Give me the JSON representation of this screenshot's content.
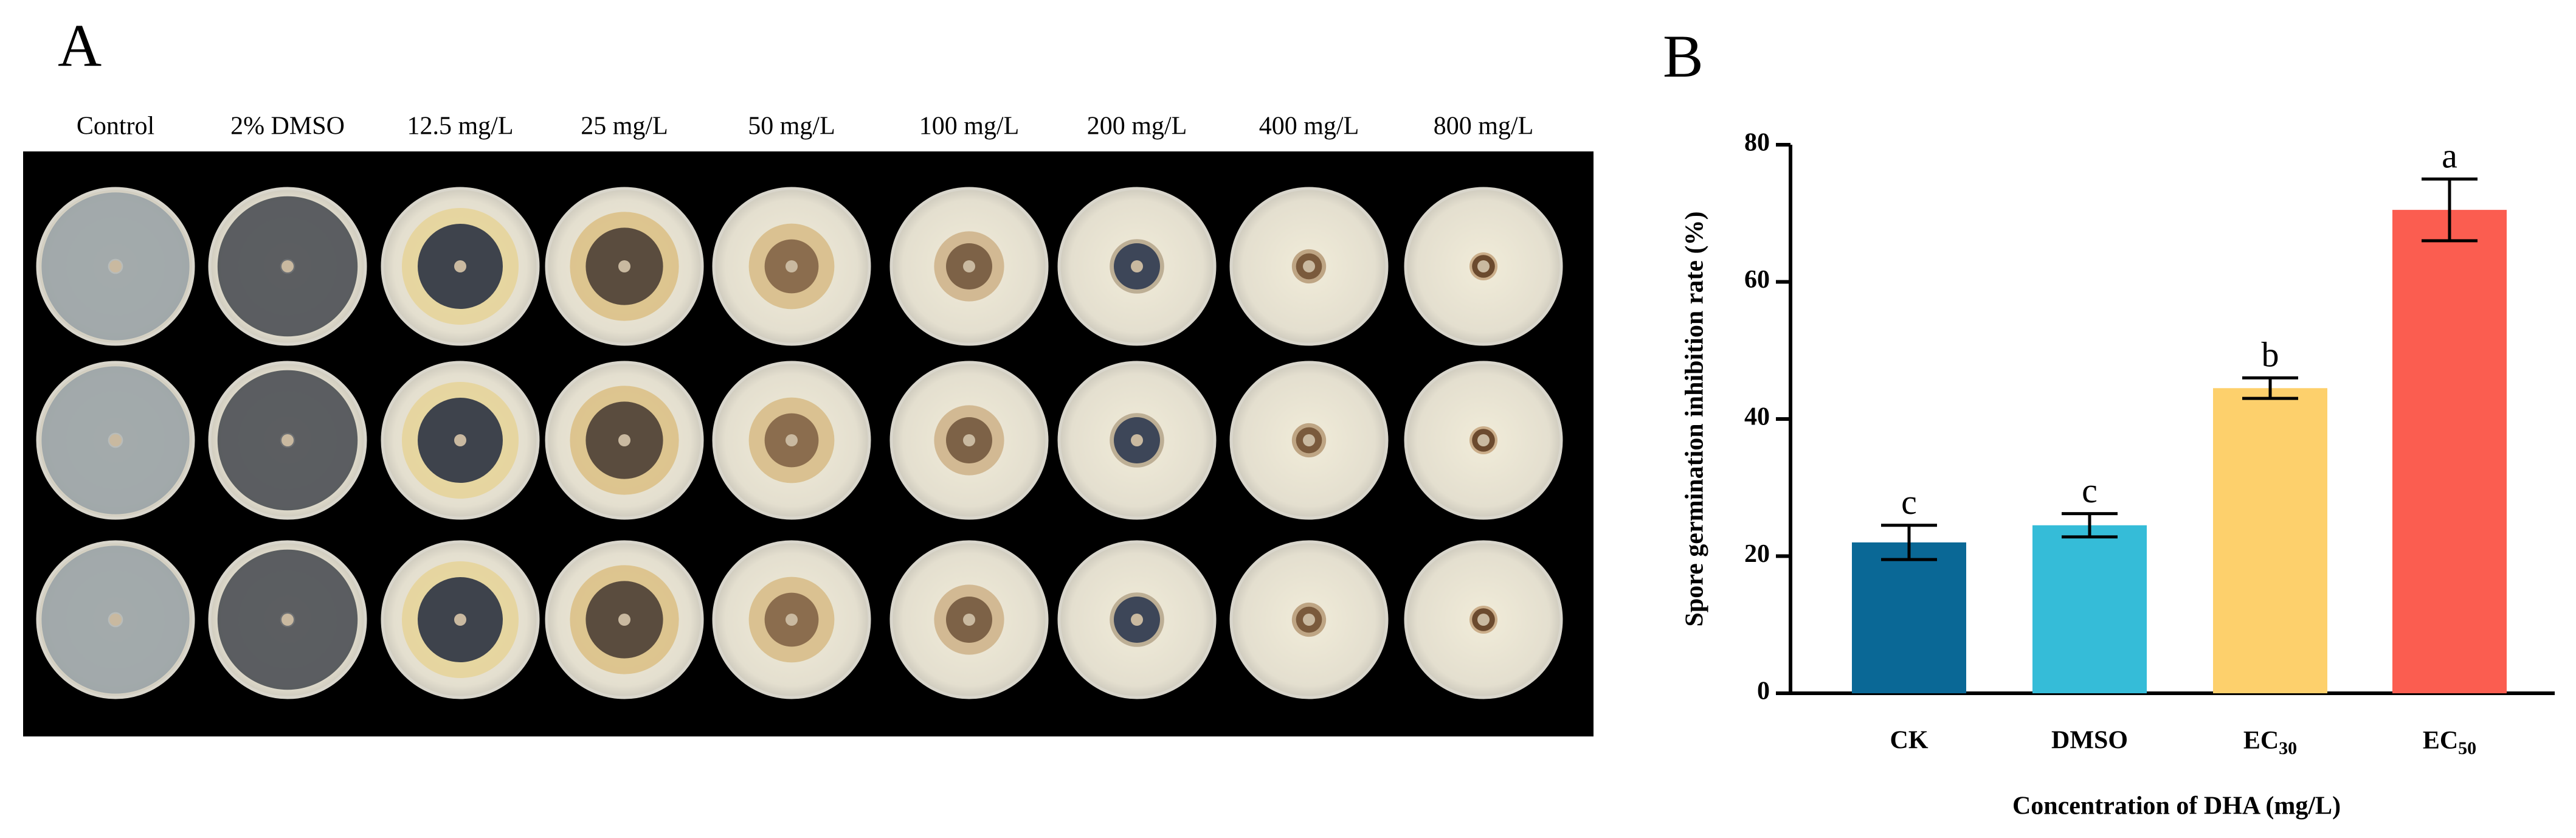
{
  "panel_a": {
    "letter": "A",
    "column_labels": [
      "Control",
      "2% DMSO",
      "12.5 mg/L",
      "25 mg/L",
      "50 mg/L",
      "100 mg/L",
      "200 mg/L",
      "400 mg/L",
      "800 mg/L"
    ]
  },
  "chart_data": {
    "type": "bar",
    "panel_letter": "B",
    "x_label": "Concentration of DHA (mg/L)",
    "y_label": "Spore germination inhibition rate (%)",
    "categories": [
      "CK",
      "DMSO",
      "EC30",
      "EC50"
    ],
    "values": [
      22,
      24.5,
      44.5,
      70.5
    ],
    "errors": [
      2.5,
      1.7,
      1.5,
      4.5
    ],
    "significance": [
      "c",
      "c",
      "b",
      "a"
    ],
    "colors": [
      "#0a6896",
      "#35bcd8",
      "#fdd06c",
      "#fb5d50"
    ],
    "ylim": [
      0,
      80
    ],
    "yticks": [
      0,
      20,
      40,
      60,
      80
    ]
  }
}
